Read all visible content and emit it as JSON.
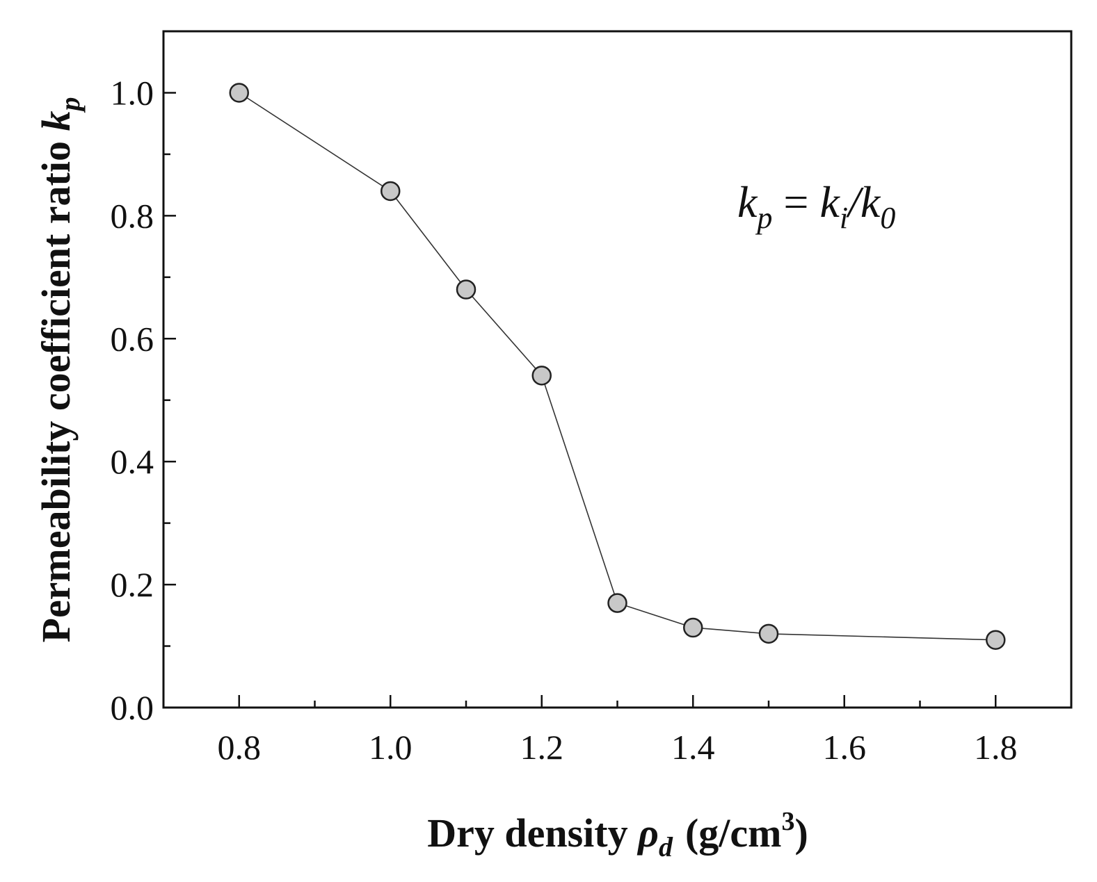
{
  "chart_data": {
    "type": "line",
    "x": [
      0.8,
      1.0,
      1.1,
      1.2,
      1.3,
      1.4,
      1.5,
      1.8
    ],
    "series": [
      {
        "values": [
          1.0,
          0.84,
          0.68,
          0.54,
          0.17,
          0.13,
          0.12,
          0.11
        ]
      }
    ],
    "xlabel": {
      "main": "Dry density ",
      "symbol": "ρ",
      "symbol_sub": "d",
      "unit_open": "(g/cm",
      "unit_sup": "3",
      "unit_close": ")"
    },
    "ylabel": {
      "main": "Permeability coefficient ratio ",
      "symbol": "k",
      "symbol_sub": "p"
    },
    "annotation": {
      "lhs": "k",
      "lhs_sub": "p",
      "eq": " = ",
      "num": "k",
      "num_sub": "i",
      "slash": "/",
      "den": "k",
      "den_sub": "0"
    },
    "xlim": [
      0.7,
      1.9
    ],
    "ylim": [
      0.0,
      1.1
    ],
    "xticks": [
      0.8,
      1.0,
      1.2,
      1.4,
      1.6,
      1.8
    ],
    "xtick_labels": [
      "0.8",
      "1.0",
      "1.2",
      "1.4",
      "1.6",
      "1.8"
    ],
    "xminor": [
      0.9,
      1.1,
      1.3,
      1.5,
      1.7
    ],
    "yticks": [
      0.0,
      0.2,
      0.4,
      0.6,
      0.8,
      1.0
    ],
    "ytick_labels": [
      "0.0",
      "0.2",
      "0.4",
      "0.6",
      "0.8",
      "1.0"
    ],
    "yminor": [
      0.1,
      0.3,
      0.5,
      0.7,
      0.9
    ],
    "grid": false,
    "legend": "none"
  }
}
